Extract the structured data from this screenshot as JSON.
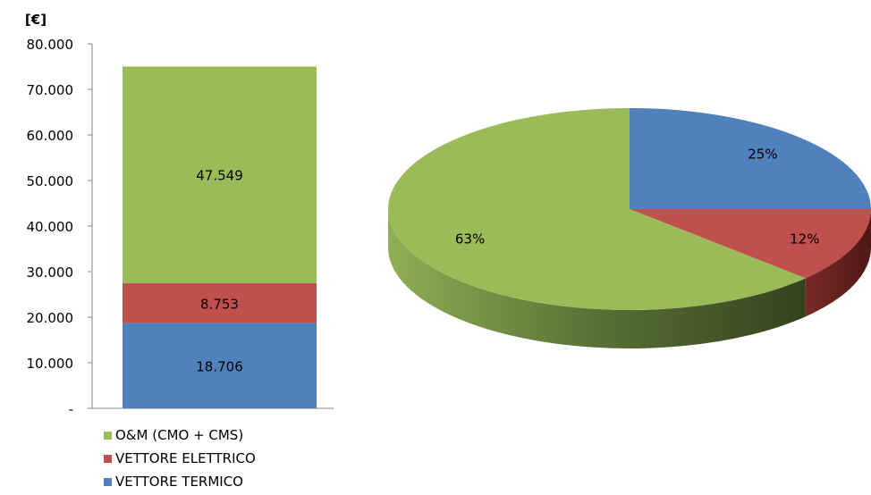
{
  "chart_data": [
    {
      "type": "bar",
      "stacked": true,
      "unit_label": "[€]",
      "ylim": [
        0,
        80000
      ],
      "y_ticks": [
        "-",
        "10.000",
        "20.000",
        "30.000",
        "40.000",
        "50.000",
        "60.000",
        "70.000",
        "80.000"
      ],
      "y_tick_values": [
        0,
        10000,
        20000,
        30000,
        40000,
        50000,
        60000,
        70000,
        80000
      ],
      "grid": false,
      "categories": [
        ""
      ],
      "series": [
        {
          "name": "VETTORE TERMICO",
          "values": [
            18706
          ],
          "label": "18.706",
          "color": "#4f81bd"
        },
        {
          "name": "VETTORE ELETTRICO",
          "values": [
            8753
          ],
          "label": "8.753",
          "color": "#c0504d"
        },
        {
          "name": "O&M (CMO + CMS)",
          "values": [
            47549
          ],
          "label": "47.549",
          "color": "#9bbb59"
        }
      ],
      "legend_placement": "bottom",
      "legend": [
        {
          "name": "O&M (CMO + CMS)",
          "color": "#9bbb59"
        },
        {
          "name": "VETTORE ELETTRICO",
          "color": "#c0504d"
        },
        {
          "name": "VETTORE TERMICO",
          "color": "#4f81bd"
        }
      ]
    },
    {
      "type": "pie",
      "style": "3d",
      "slices": [
        {
          "name": "VETTORE TERMICO",
          "value": 25,
          "label": "25%",
          "color": "#4f81bd"
        },
        {
          "name": "VETTORE ELETTRICO",
          "value": 12,
          "label": "12%",
          "color": "#c0504d"
        },
        {
          "name": "O&M (CMO + CMS)",
          "value": 63,
          "label": "63%",
          "color": "#9bbb59"
        }
      ]
    }
  ]
}
